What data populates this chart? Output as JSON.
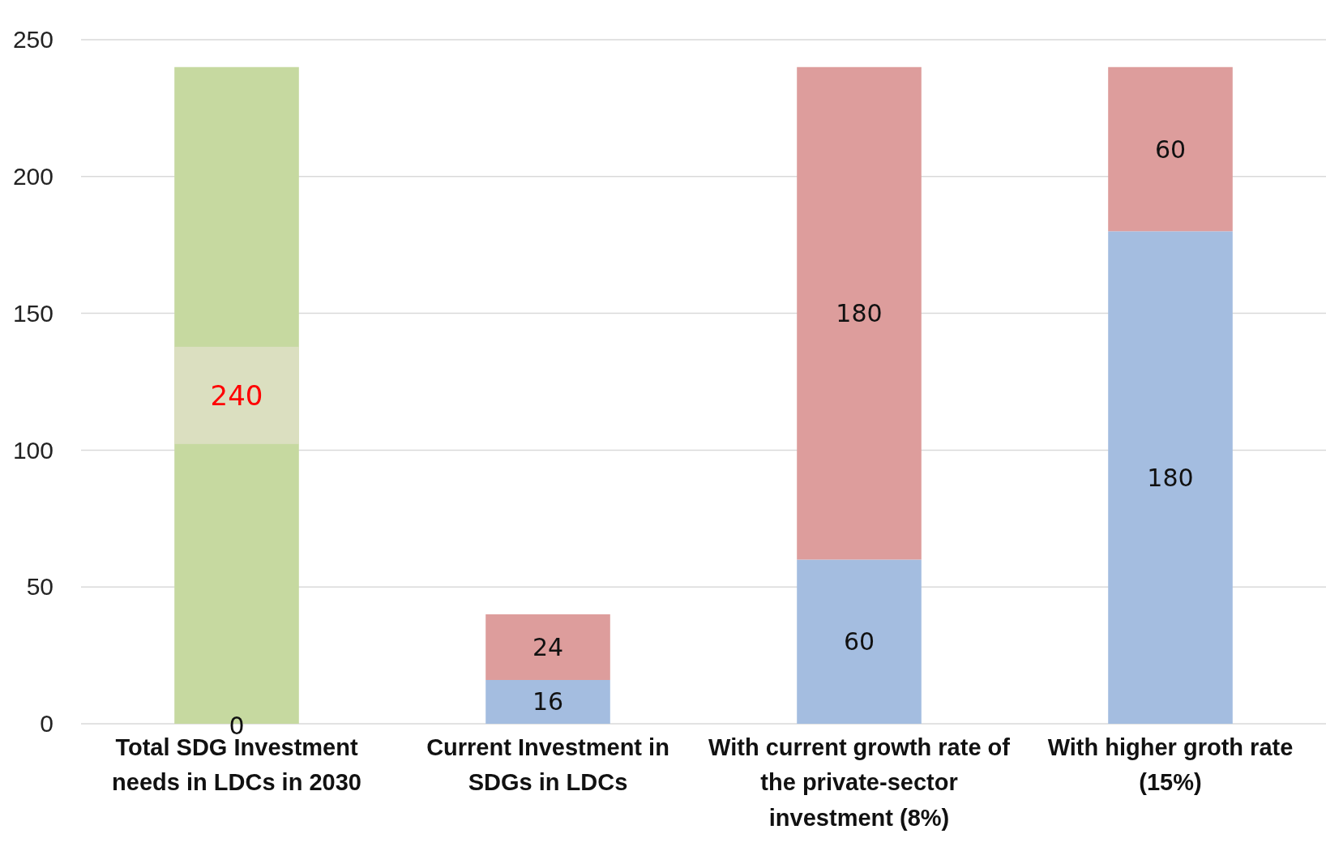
{
  "chart_data": {
    "type": "bar",
    "stacked": true,
    "categories": [
      "Total SDG Investment needs in LDCs in 2030",
      "Current Investment in SDGs in LDCs",
      "With current growth rate of the private-sector investment (8%)",
      "With higher groth rate (15%)"
    ],
    "series": [
      {
        "color": "#a4bde0",
        "values": [
          0,
          16,
          60,
          180
        ],
        "value_labels": [
          null,
          "16",
          "60",
          "180"
        ]
      },
      {
        "color": "#dd9d9c",
        "values": [
          null,
          24,
          180,
          60
        ],
        "value_labels": [
          null,
          "24",
          "180",
          "60"
        ]
      },
      {
        "color": "#c6d9a0",
        "values": [
          240,
          null,
          null,
          null
        ],
        "value_labels": [
          "240",
          null,
          null,
          null
        ]
      }
    ],
    "ylim": [
      0,
      250
    ],
    "yticks": [
      0,
      50,
      100,
      150,
      200,
      250
    ],
    "grid": "y",
    "annotations": [
      {
        "text": "0",
        "x": "Total SDG Investment needs in LDCs in 2030",
        "y": 0
      }
    ]
  }
}
